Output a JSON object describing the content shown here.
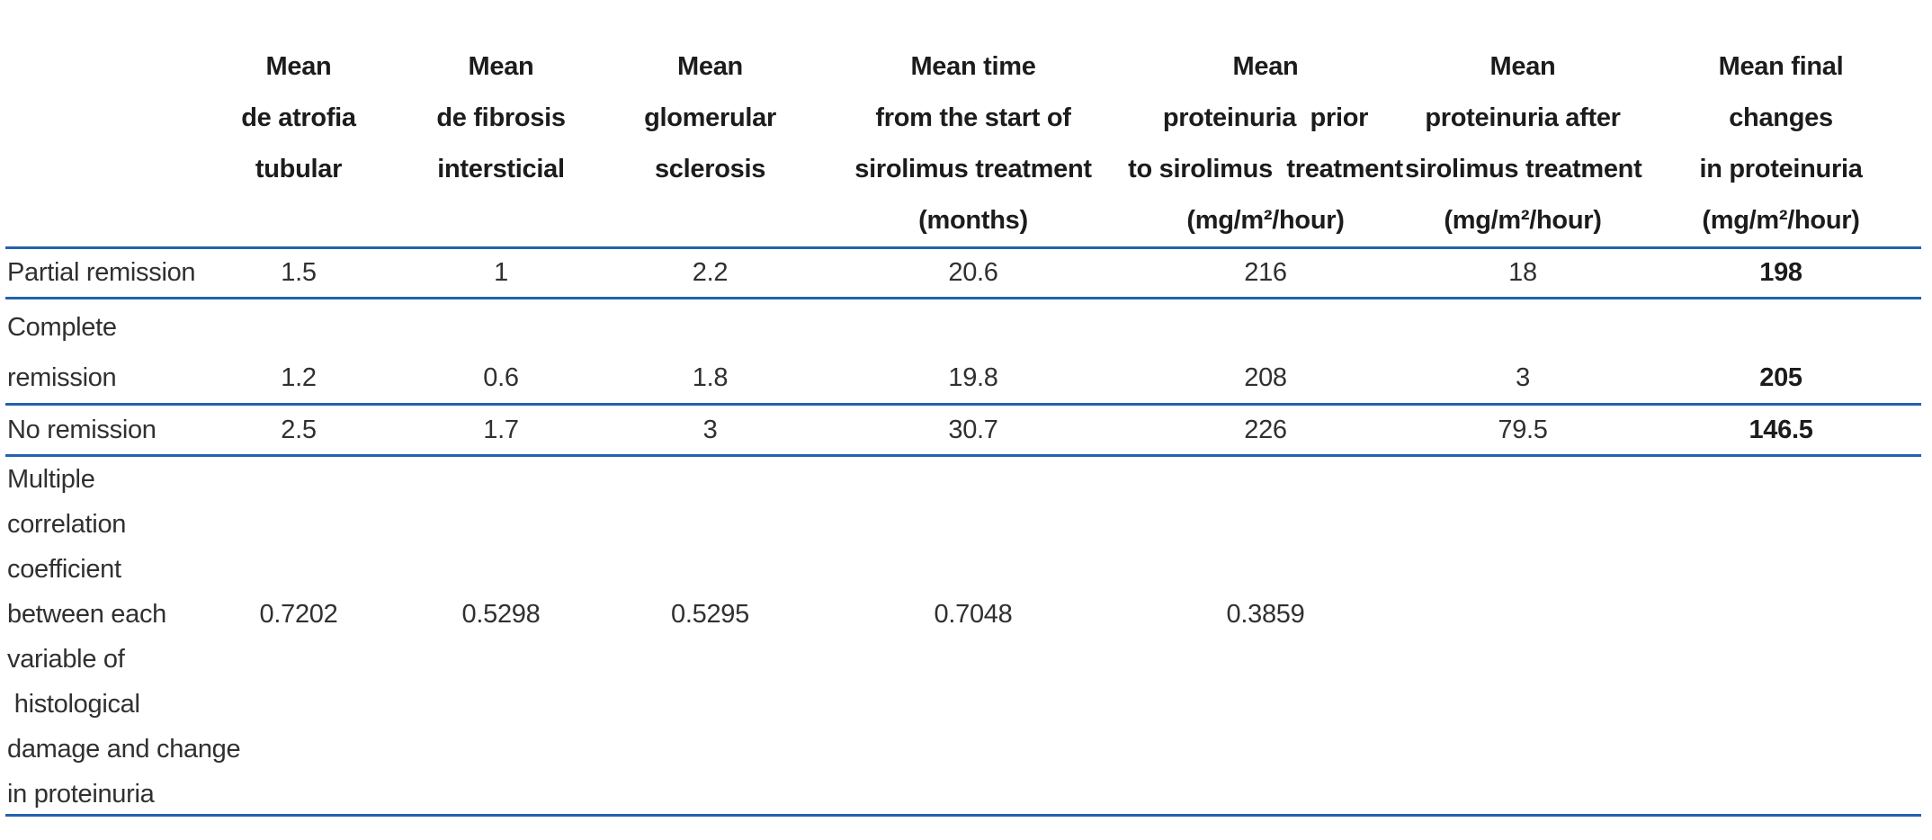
{
  "table": {
    "accent_color": "#2363ae",
    "header": {
      "row_label": "",
      "col_atrofia": "Mean\nde atrofia\ntubular",
      "col_fibrosis": "Mean\nde fibrosis\nintersticial",
      "col_sclerosis": "Mean\nglomerular\nsclerosis",
      "col_time": "Mean time\nfrom the start of\nsirolimus treatment\n(months)",
      "col_prot_prior": "Mean\nproteinuria  prior\nto sirolimus  treatment\n(mg/m²/hour)",
      "col_prot_after": "Mean\nproteinuria after\nsirolimus treatment\n(mg/m²/hour)",
      "col_final_changes": "Mean final\nchanges\nin proteinuria\n(mg/m²/hour)"
    },
    "rows": [
      {
        "label": "Partial remission",
        "values": [
          "1.5",
          "1",
          "2.2",
          "20.6",
          "216",
          "18",
          "198"
        ]
      },
      {
        "label": "Complete\nremission",
        "values": [
          "1.2",
          "0.6",
          "1.8",
          "19.8",
          "208",
          "3",
          "205"
        ]
      },
      {
        "label": "No remission",
        "values": [
          "2.5",
          "1.7",
          "3",
          "30.7",
          "226",
          "79.5",
          "146.5"
        ]
      },
      {
        "label": "Multiple\ncorrelation\ncoefficient\nbetween each\nvariable of\n histological\ndamage and change\nin proteinuria",
        "values": [
          "0.7202",
          "0.5298",
          "0.5295",
          "0.7048",
          "0.3859",
          "",
          ""
        ]
      }
    ]
  }
}
